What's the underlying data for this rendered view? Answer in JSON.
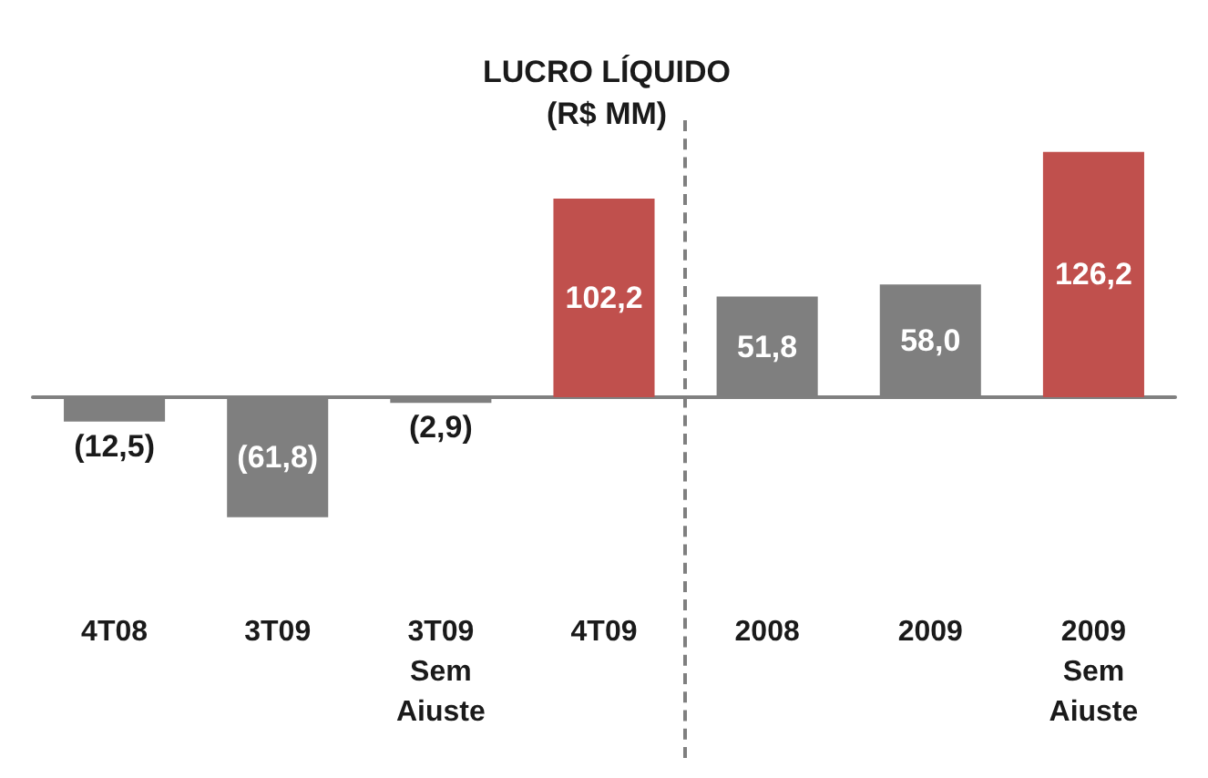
{
  "chart_data": {
    "type": "bar",
    "title": "LUCRO LÍQUIDO",
    "subtitle": "(R$ MM)",
    "categories": [
      "4T08",
      "3T09",
      "3T09\nSem\nAiuste",
      "4T09",
      "2008",
      "2009",
      "2009\nSem\nAiuste"
    ],
    "values": [
      -12.5,
      -61.8,
      -2.9,
      102.2,
      51.8,
      58.0,
      126.2
    ],
    "colors": [
      "#7f7f7f",
      "#7f7f7f",
      "#7f7f7f",
      "#c0504d",
      "#7f7f7f",
      "#7f7f7f",
      "#c0504d"
    ],
    "value_labels": [
      "(12,5)",
      "(61,8)",
      "(2,9)",
      "102,2",
      "51,8",
      "58,0",
      "126,2"
    ],
    "grid": false
  }
}
